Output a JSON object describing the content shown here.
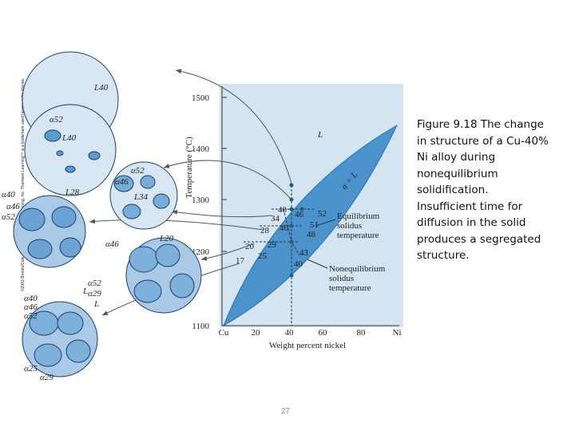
{
  "copyright": "©2003 Brooks/Cole, a division of Thomson Learning, Inc. Thomson Learning™ is a trademark used herein under license.",
  "caption_lines": [
    "Figure 9.18 The change",
    "in structure of a Cu-40%",
    "Ni alloy during",
    "nonequilibrium",
    "solidification.",
    "Insufficient time for",
    "diffusion in the solid",
    "produces a segregated",
    "structure."
  ],
  "page_number": "27",
  "diagram": {
    "y_axis_label": "Temperature (°C)",
    "x_axis_label": "Weight percent nickel",
    "y_ticks": [
      "1500",
      "1400",
      "1300",
      "1200",
      "1100"
    ],
    "x_ticks": [
      "Cu",
      "20",
      "40",
      "60",
      "80",
      "Ni"
    ],
    "region_labels": [
      "L",
      "α + L"
    ],
    "point_labels": [
      "40",
      "34",
      "46",
      "52",
      "28",
      "40",
      "51",
      "48",
      "20",
      "29",
      "25",
      "17",
      "43",
      "40"
    ],
    "equilibrium_note": [
      "Equilibrium",
      "solidus",
      "temperature"
    ],
    "nonequilibrium_note": [
      "Nonequilibrium",
      "solidus",
      "temperature"
    ]
  },
  "circles": [
    {
      "labels": [
        "L40"
      ]
    },
    {
      "labels": [
        "α52",
        "L40"
      ]
    },
    {
      "labels": [
        "α52",
        "α46",
        "L34"
      ]
    },
    {
      "labels": [
        "α40",
        "α46",
        "α52",
        "L28"
      ]
    },
    {
      "labels": [
        "α46",
        "L20",
        "α52",
        "α29",
        "L"
      ]
    },
    {
      "labels": [
        "α40",
        "α46",
        "α52",
        "L",
        "α25",
        "α29"
      ]
    }
  ]
}
